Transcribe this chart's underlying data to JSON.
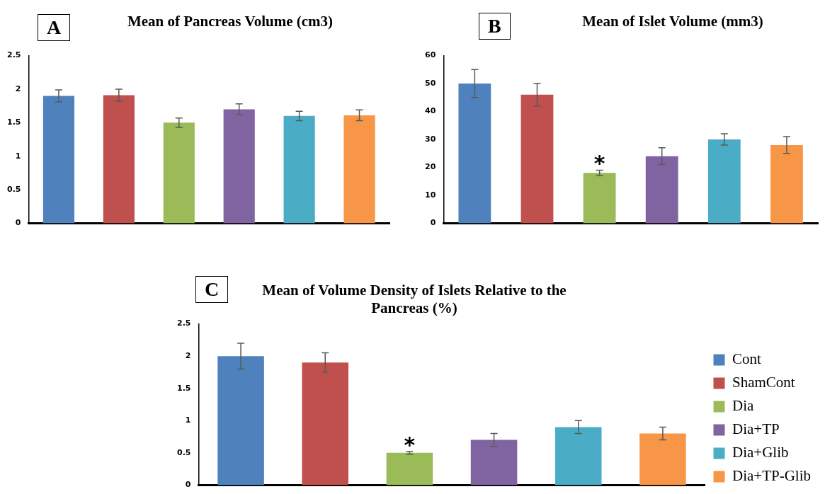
{
  "chart_data": [
    {
      "type": "bar",
      "title": "Mean of Pancreas Volume (cm3)",
      "annotations": [
        "A"
      ],
      "categories": [
        null,
        null,
        null,
        null,
        null,
        null
      ],
      "values": [
        1.9,
        1.91,
        1.5,
        1.7,
        1.6,
        1.61
      ],
      "errors": [
        0.09,
        0.09,
        0.07,
        0.08,
        0.07,
        0.08
      ],
      "colors": [
        "#4f81bd",
        "#c0504d",
        "#9bbb59",
        "#8064a2",
        "#4bacc6",
        "#f79646"
      ],
      "ylim": [
        0,
        2.5
      ],
      "yticks": [
        0,
        0.5,
        1,
        1.5,
        2,
        2.5
      ],
      "tick_labels": "y",
      "legend": false,
      "grid": false
    },
    {
      "type": "bar",
      "title": "Mean of Islet Volume (mm3)",
      "annotations": [
        "B"
      ],
      "categories": [
        null,
        null,
        null,
        null,
        null,
        null
      ],
      "values": [
        50,
        46,
        18,
        24,
        30,
        28
      ],
      "errors": [
        5,
        4,
        1,
        3,
        2,
        3
      ],
      "value_labels": [
        null,
        null,
        "*",
        null,
        null,
        null
      ],
      "colors": [
        "#4f81bd",
        "#c0504d",
        "#9bbb59",
        "#8064a2",
        "#4bacc6",
        "#f79646"
      ],
      "ylim": [
        0,
        60
      ],
      "yticks": [
        0,
        10,
        20,
        30,
        40,
        50,
        60
      ],
      "tick_labels": "y",
      "legend": false,
      "grid": false
    },
    {
      "type": "bar",
      "title": "Mean of Volume Density of Islets Relative to the Pancreas (%)",
      "annotations": [
        "C"
      ],
      "categories": [
        null,
        null,
        null,
        null,
        null,
        null
      ],
      "series": [
        {
          "name": "Cont",
          "color": "#4f81bd",
          "values": [
            2.0,
            null,
            null,
            null,
            null,
            null
          ],
          "errors": [
            0.2,
            null,
            null,
            null,
            null,
            null
          ]
        },
        {
          "name": "ShamCont",
          "color": "#c0504d",
          "values": [
            null,
            1.9,
            null,
            null,
            null,
            null
          ],
          "errors": [
            null,
            0.15,
            null,
            null,
            null,
            null
          ]
        },
        {
          "name": "Dia",
          "color": "#9bbb59",
          "values": [
            null,
            null,
            0.5,
            null,
            null,
            null
          ],
          "errors": [
            null,
            null,
            0.02,
            null,
            null,
            null
          ],
          "value_labels": [
            null,
            null,
            "*",
            null,
            null,
            null
          ]
        },
        {
          "name": "Dia+TP",
          "color": "#8064a2",
          "values": [
            null,
            null,
            null,
            0.7,
            null,
            null
          ],
          "errors": [
            null,
            null,
            null,
            0.1,
            null,
            null
          ]
        },
        {
          "name": "Dia+Glib",
          "color": "#4bacc6",
          "values": [
            null,
            null,
            null,
            null,
            0.9,
            null
          ],
          "errors": [
            null,
            null,
            null,
            null,
            0.1,
            null
          ]
        },
        {
          "name": "Dia+TP-Glib",
          "color": "#f79646",
          "values": [
            null,
            null,
            null,
            null,
            null,
            0.8
          ],
          "errors": [
            null,
            null,
            null,
            null,
            null,
            0.1
          ]
        }
      ],
      "ylim": [
        0,
        2.5
      ],
      "yticks": [
        0,
        0.5,
        1,
        1.5,
        2,
        2.5
      ],
      "tick_labels": "y",
      "legend": "right",
      "grid": false
    }
  ]
}
